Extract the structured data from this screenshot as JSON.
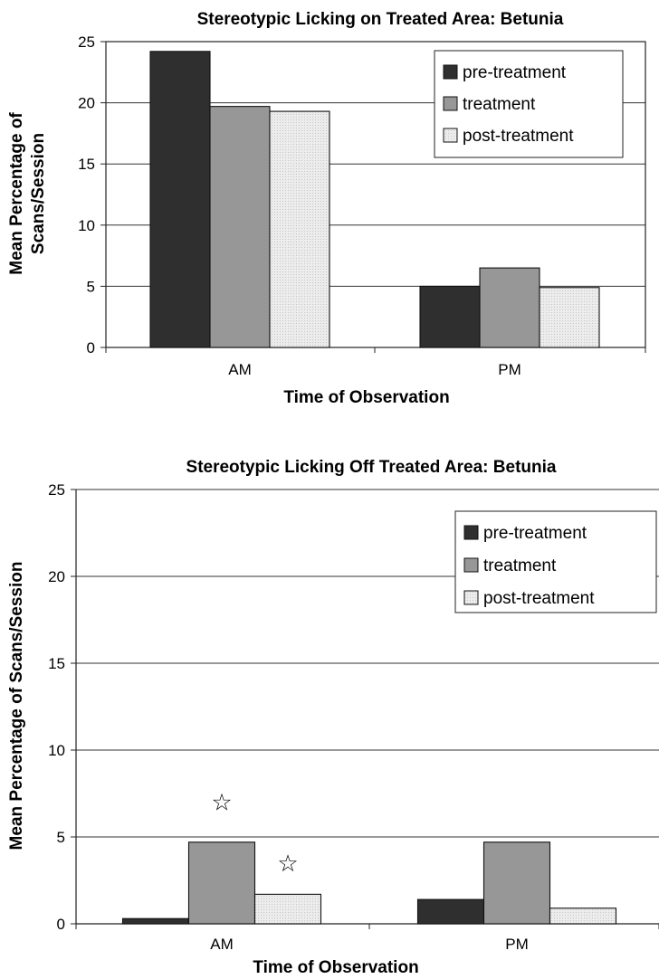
{
  "colors": {
    "pre-treatment": "#2f2f2f",
    "treatment": "#979797",
    "post-treatment": "#e6e6e6"
  },
  "chart_data": [
    {
      "type": "bar",
      "title": "Stereotypic Licking on Treated Area: Betunia",
      "xlabel": "Time of Observation",
      "ylabel": [
        "Mean Percentage of",
        "Scans/Session"
      ],
      "categories": [
        "AM",
        "PM"
      ],
      "ylim": [
        0,
        25
      ],
      "yticks": [
        0,
        5,
        10,
        15,
        20,
        25
      ],
      "grid": true,
      "legend_position": "top-right",
      "series": [
        {
          "name": "pre-treatment",
          "values": [
            24.2,
            5.0
          ]
        },
        {
          "name": "treatment",
          "values": [
            19.7,
            6.5
          ]
        },
        {
          "name": "post-treatment",
          "values": [
            19.3,
            4.9
          ]
        }
      ],
      "annotations": []
    },
    {
      "type": "bar",
      "title": "Stereotypic Licking Off Treated Area: Betunia",
      "xlabel": "Time of Observation",
      "ylabel": [
        "Mean Percentage of Scans/Session"
      ],
      "categories": [
        "AM",
        "PM"
      ],
      "ylim": [
        0,
        25
      ],
      "yticks": [
        0,
        5,
        10,
        15,
        20,
        25
      ],
      "grid": true,
      "legend_position": "top-right",
      "series": [
        {
          "name": "pre-treatment",
          "values": [
            0.3,
            1.4
          ]
        },
        {
          "name": "treatment",
          "values": [
            4.7,
            4.7
          ]
        },
        {
          "name": "post-treatment",
          "values": [
            1.7,
            0.9
          ]
        }
      ],
      "annotations": [
        {
          "symbol": "☆",
          "category": "AM",
          "series": "treatment",
          "y": 7.0
        },
        {
          "symbol": "☆",
          "category": "AM",
          "series": "post-treatment",
          "y": 3.5
        }
      ]
    }
  ]
}
